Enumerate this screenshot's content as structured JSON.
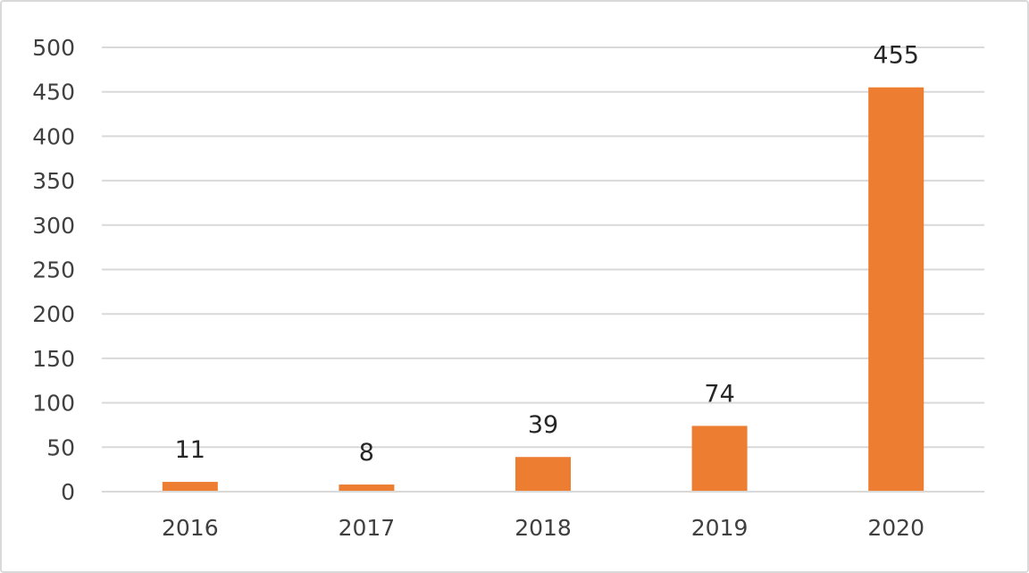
{
  "chart_data": {
    "type": "bar",
    "title": "",
    "xlabel": "",
    "ylabel": "",
    "categories": [
      "2016",
      "2017",
      "2018",
      "2019",
      "2020"
    ],
    "values": [
      11,
      8,
      39,
      74,
      455
    ],
    "data_labels": [
      "11",
      "8",
      "39",
      "74",
      "455"
    ],
    "ylim": [
      0,
      500
    ],
    "yticks": [
      0,
      50,
      100,
      150,
      200,
      250,
      300,
      350,
      400,
      450,
      500
    ],
    "grid": true,
    "legend": "none",
    "bar_color": "#ED7D31",
    "grid_color": "#d9d9d9"
  }
}
